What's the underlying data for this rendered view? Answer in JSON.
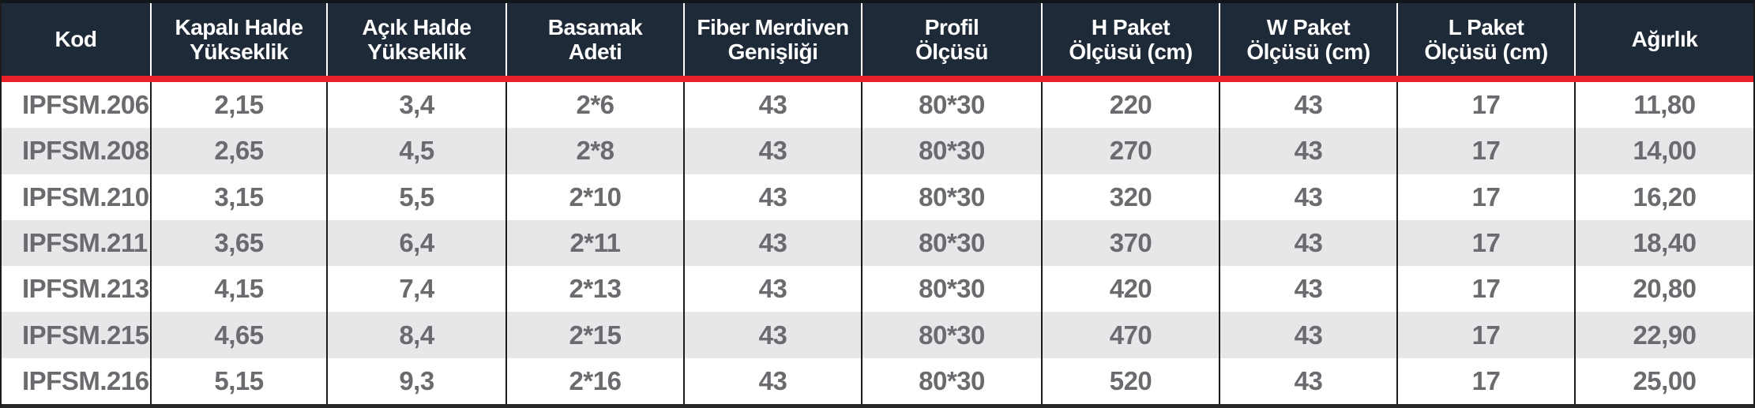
{
  "table": {
    "columns": [
      {
        "key": "kod",
        "label": "Kod"
      },
      {
        "key": "kapali-halde-yukseklik",
        "label": "Kapalı Halde\nYükseklik"
      },
      {
        "key": "acik-halde-yukseklik",
        "label": "Açık Halde\nYükseklik"
      },
      {
        "key": "basamak-adeti",
        "label": "Basamak\nAdeti"
      },
      {
        "key": "fiber-merdiven-genisligi",
        "label": "Fiber Merdiven\nGenişliği"
      },
      {
        "key": "profil-olcusu",
        "label": "Profil\nÖlçüsü"
      },
      {
        "key": "h-paket-olcusu",
        "label": "H Paket\nÖlçüsü (cm)"
      },
      {
        "key": "w-paket-olcusu",
        "label": "W Paket\nÖlçüsü (cm)"
      },
      {
        "key": "l-paket-olcusu",
        "label": "L Paket\nÖlçüsü (cm)"
      },
      {
        "key": "agirlik",
        "label": "Ağırlık"
      }
    ],
    "rows": [
      {
        "cells": [
          "IPFSM.206",
          "2,15",
          "3,4",
          "2*6",
          "43",
          "80*30",
          "220",
          "43",
          "17",
          "11,80"
        ]
      },
      {
        "cells": [
          "IPFSM.208",
          "2,65",
          "4,5",
          "2*8",
          "43",
          "80*30",
          "270",
          "43",
          "17",
          "14,00"
        ]
      },
      {
        "cells": [
          "IPFSM.210",
          "3,15",
          "5,5",
          "2*10",
          "43",
          "80*30",
          "320",
          "43",
          "17",
          "16,20"
        ]
      },
      {
        "cells": [
          "IPFSM.211",
          "3,65",
          "6,4",
          "2*11",
          "43",
          "80*30",
          "370",
          "43",
          "17",
          "18,40"
        ]
      },
      {
        "cells": [
          "IPFSM.213",
          "4,15",
          "7,4",
          "2*13",
          "43",
          "80*30",
          "420",
          "43",
          "17",
          "20,80"
        ]
      },
      {
        "cells": [
          "IPFSM.215",
          "4,65",
          "8,4",
          "2*15",
          "43",
          "80*30",
          "470",
          "43",
          "17",
          "22,90"
        ]
      },
      {
        "cells": [
          "IPFSM.216",
          "5,15",
          "9,3",
          "2*16",
          "43",
          "80*30",
          "520",
          "43",
          "17",
          "25,00"
        ]
      }
    ]
  },
  "colors": {
    "header_background": "#1f2a38",
    "header_text": "#ffffff",
    "accent_red_divider": "#e62129",
    "row_alt_background": "#e7e7e9",
    "body_text": "#6a6b6e",
    "grid_line": "#1b1b1b"
  }
}
